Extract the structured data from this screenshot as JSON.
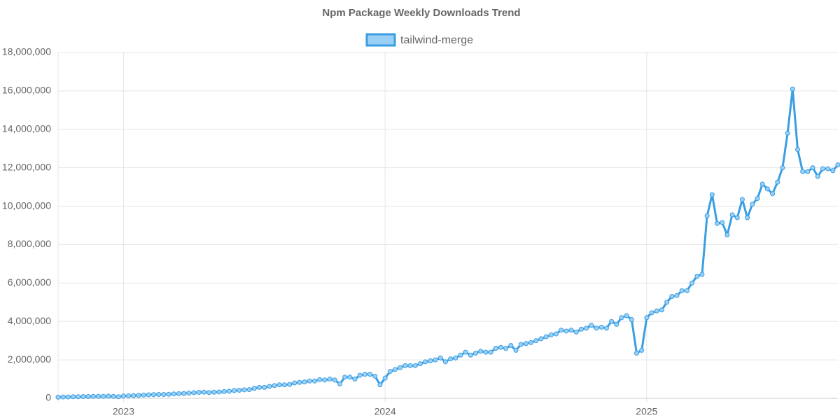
{
  "chart_data": {
    "type": "line",
    "title": "Npm Package Weekly Downloads Trend",
    "categories": [
      null,
      null,
      null,
      null,
      null,
      null,
      null,
      null,
      null,
      null,
      null,
      null,
      null,
      "2023",
      null,
      null,
      null,
      null,
      null,
      null,
      null,
      null,
      null,
      null,
      null,
      null,
      null,
      null,
      null,
      null,
      null,
      null,
      null,
      null,
      null,
      null,
      null,
      null,
      null,
      null,
      null,
      null,
      null,
      null,
      null,
      null,
      null,
      null,
      null,
      null,
      null,
      null,
      null,
      null,
      null,
      null,
      null,
      null,
      null,
      null,
      null,
      null,
      null,
      null,
      null,
      "2024",
      null,
      null,
      null,
      null,
      null,
      null,
      null,
      null,
      null,
      null,
      null,
      null,
      null,
      null,
      null,
      null,
      null,
      null,
      null,
      null,
      null,
      null,
      null,
      null,
      null,
      null,
      null,
      null,
      null,
      null,
      null,
      null,
      null,
      null,
      null,
      null,
      null,
      null,
      null,
      null,
      null,
      null,
      null,
      null,
      null,
      null,
      null,
      null,
      null,
      null,
      null,
      "2025",
      null,
      null,
      null,
      null,
      null,
      null,
      null,
      null,
      null,
      null,
      null,
      null,
      null,
      null,
      null,
      null,
      null,
      null,
      null,
      null,
      null,
      null,
      null,
      null,
      null,
      null,
      null,
      null,
      null,
      null,
      null,
      null,
      null,
      null,
      null,
      null,
      null,
      null
    ],
    "series": [
      {
        "name": "tailwind-merge",
        "color": "#3a9ee2",
        "values": [
          60000,
          70000,
          70000,
          80000,
          80000,
          90000,
          90000,
          100000,
          100000,
          100000,
          110000,
          100000,
          80000,
          120000,
          130000,
          140000,
          150000,
          170000,
          180000,
          190000,
          200000,
          200000,
          210000,
          230000,
          240000,
          250000,
          270000,
          290000,
          310000,
          320000,
          300000,
          320000,
          330000,
          350000,
          370000,
          400000,
          420000,
          440000,
          450000,
          520000,
          570000,
          570000,
          620000,
          660000,
          700000,
          700000,
          720000,
          800000,
          830000,
          850000,
          900000,
          900000,
          970000,
          950000,
          1000000,
          950000,
          750000,
          1100000,
          1100000,
          1000000,
          1200000,
          1250000,
          1250000,
          1150000,
          700000,
          1050000,
          1400000,
          1500000,
          1600000,
          1700000,
          1700000,
          1700000,
          1800000,
          1900000,
          1950000,
          2000000,
          2100000,
          1900000,
          2050000,
          2100000,
          2250000,
          2400000,
          2250000,
          2350000,
          2450000,
          2400000,
          2400000,
          2600000,
          2650000,
          2600000,
          2750000,
          2500000,
          2800000,
          2850000,
          2900000,
          3000000,
          3100000,
          3200000,
          3300000,
          3350000,
          3550000,
          3500000,
          3550000,
          3450000,
          3600000,
          3650000,
          3800000,
          3650000,
          3700000,
          3650000,
          4000000,
          3850000,
          4200000,
          4300000,
          4100000,
          2350000,
          2500000,
          4200000,
          4450000,
          4550000,
          4600000,
          5000000,
          5300000,
          5350000,
          5600000,
          5600000,
          6000000,
          6350000,
          6450000,
          9500000,
          10600000,
          9100000,
          9150000,
          8500000,
          9550000,
          9400000,
          10350000,
          9400000,
          10100000,
          10400000,
          11150000,
          10900000,
          10650000,
          11250000,
          12000000,
          13800000,
          16100000,
          12950000,
          11800000,
          11800000,
          12000000,
          11550000,
          11950000,
          11950000,
          11850000,
          12150000
        ]
      }
    ],
    "ylim": [
      0,
      18000000
    ],
    "yticks": [
      0,
      {
        "value": 2000000,
        "label": "2,000,000"
      },
      {
        "value": 4000000,
        "label": "4,000,000"
      },
      {
        "value": 6000000,
        "label": "6,000,000"
      },
      {
        "value": 8000000,
        "label": "8,000,000"
      },
      {
        "value": 10000000,
        "label": "10,000,000"
      },
      {
        "value": 12000000,
        "label": "12,000,000"
      },
      {
        "value": 14000000,
        "label": "14,000,000"
      },
      {
        "value": 16000000,
        "label": "16,000,000"
      },
      {
        "value": 18000000,
        "label": "18,000,000"
      }
    ],
    "grid": true,
    "legend": "top"
  }
}
